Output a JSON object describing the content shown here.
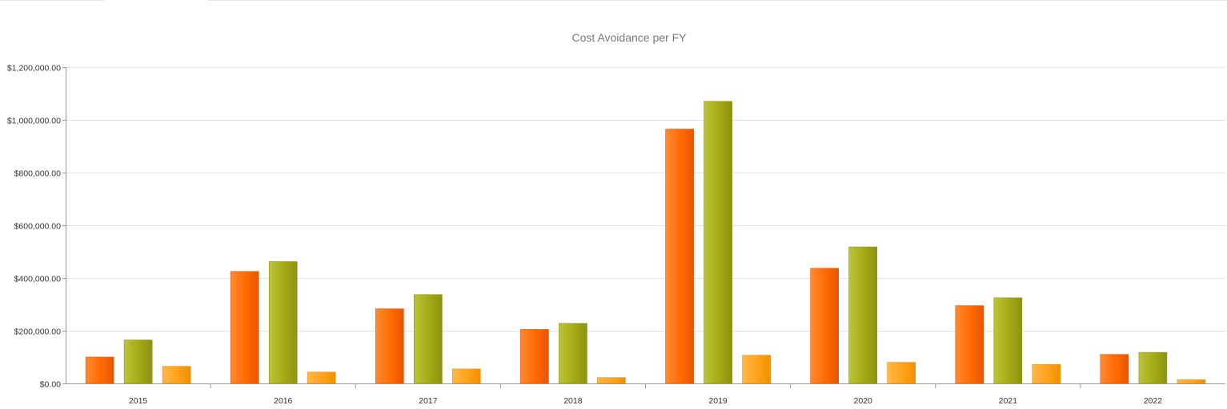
{
  "chart_data": {
    "type": "bar",
    "title": "Cost Avoidance per FY",
    "xlabel": "",
    "ylabel": "",
    "categories": [
      "2015",
      "2016",
      "2017",
      "2018",
      "2019",
      "2020",
      "2021",
      "2022"
    ],
    "ylim": [
      0,
      1200000
    ],
    "y_ticks": [
      0,
      200000,
      400000,
      600000,
      800000,
      1000000,
      1200000
    ],
    "y_tick_labels": [
      "$0.00",
      "$200,000.00",
      "$400,000.00",
      "$600,000.00",
      "$800,000.00",
      "$1,000,000.00",
      "$1,200,000.00"
    ],
    "grid": true,
    "legend": "none",
    "series": [
      {
        "color_top": "#ff8a33",
        "color_mid": "#ff6a00",
        "color_edge": "#e85500",
        "values": [
          100000,
          425000,
          283000,
          205000,
          965000,
          437000,
          295000,
          110000
        ]
      },
      {
        "color_top": "#bcc43a",
        "color_mid": "#a3aa14",
        "color_edge": "#8c9310",
        "values": [
          165000,
          462000,
          337000,
          228000,
          1070000,
          518000,
          325000,
          118000
        ]
      },
      {
        "color_top": "#ffb84a",
        "color_mid": "#ffa21a",
        "color_edge": "#f09000",
        "values": [
          65000,
          43000,
          55000,
          22000,
          107000,
          80000,
          72000,
          14000
        ]
      }
    ]
  }
}
